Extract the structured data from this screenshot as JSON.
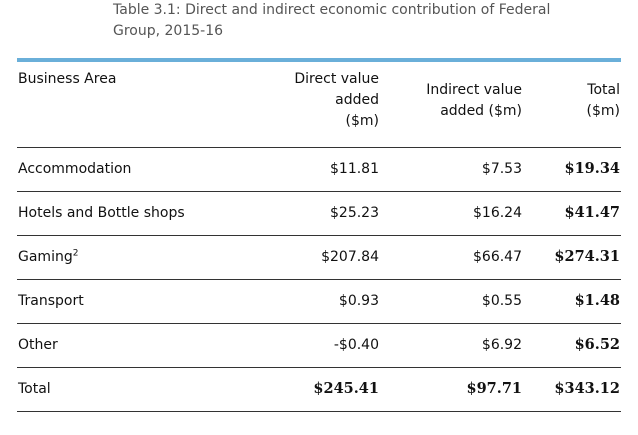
{
  "caption": {
    "line1": "Table 3.1: Direct and indirect economic contribution of Federal",
    "line2": "Group, 2015-16"
  },
  "accent_color": "#6aafd9",
  "table": {
    "headers": {
      "business_area": "Business Area",
      "direct_1": "Direct value",
      "direct_2": "added",
      "direct_3": "($m)",
      "indirect_1": "Indirect value",
      "indirect_2": "added ($m)",
      "total_1": "Total",
      "total_2": "($m)"
    },
    "rows": [
      {
        "area": "Accommodation",
        "sup": "",
        "direct": "$11.81",
        "indirect": "$7.53",
        "total": "$19.34"
      },
      {
        "area": "Hotels and Bottle shops",
        "sup": "",
        "direct": "$25.23",
        "indirect": "$16.24",
        "total": "$41.47"
      },
      {
        "area": "Gaming",
        "sup": "2",
        "direct": "$207.84",
        "indirect": "$66.47",
        "total": "$274.31"
      },
      {
        "area": "Transport",
        "sup": "",
        "direct": "$0.93",
        "indirect": "$0.55",
        "total": "$1.48"
      },
      {
        "area": "Other",
        "sup": "",
        "direct": "-$0.40",
        "indirect": "$6.92",
        "total": "$6.52"
      }
    ],
    "total_row": {
      "area": "Total",
      "direct": "$245.41",
      "indirect": "$97.71",
      "total": "$343.12"
    }
  }
}
